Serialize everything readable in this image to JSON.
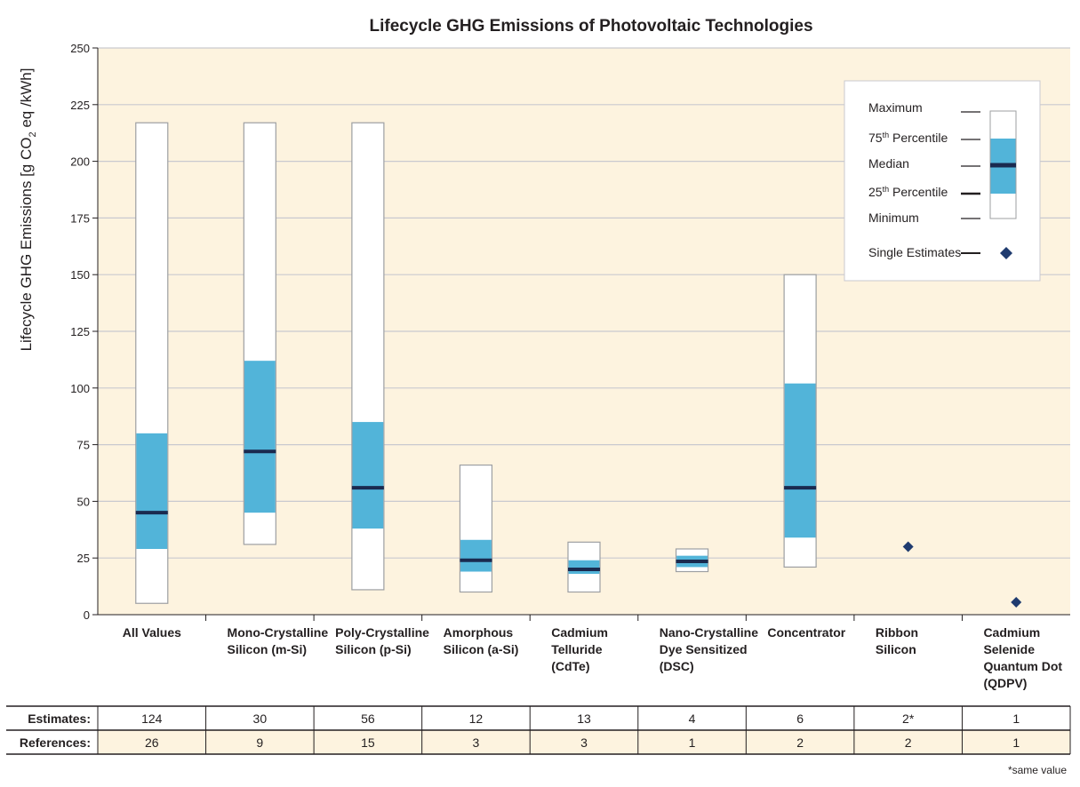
{
  "chart_data": {
    "type": "box",
    "title": "Lifecycle GHG Emissions of Photovoltaic Technologies",
    "ylabel_parts": [
      "Lifecycle GHG Emissions [g CO",
      "2",
      " eq /kWh]"
    ],
    "xlabel": "",
    "ylim": [
      0,
      250
    ],
    "yticks": [
      0,
      25,
      50,
      75,
      100,
      125,
      150,
      175,
      200,
      225,
      250
    ],
    "grid": true,
    "legend_position": "top-right",
    "categories": [
      [
        "All Values"
      ],
      [
        "Mono-Crystalline",
        "Silicon (m-Si)"
      ],
      [
        "Poly-Crystalline",
        "Silicon (p-Si)"
      ],
      [
        "Amorphous",
        "Silicon (a-Si)"
      ],
      [
        "Cadmium",
        "Telluride",
        "(CdTe)"
      ],
      [
        "Nano-Crystalline",
        "Dye Sensitized",
        "(DSC)"
      ],
      [
        "Concentrator"
      ],
      [
        "Ribbon",
        "Silicon"
      ],
      [
        "Cadmium",
        "Selenide",
        "Quantum Dot",
        "(QDPV)"
      ]
    ],
    "boxes": [
      {
        "min": 5,
        "q1": 29,
        "median": 45,
        "q3": 80,
        "max": 217
      },
      {
        "min": 31,
        "q1": 45,
        "median": 72,
        "q3": 112,
        "max": 217
      },
      {
        "min": 11,
        "q1": 38,
        "median": 56,
        "q3": 85,
        "max": 217
      },
      {
        "min": 10,
        "q1": 19,
        "median": 24,
        "q3": 33,
        "max": 66
      },
      {
        "min": 10,
        "q1": 18,
        "median": 20,
        "q3": 24,
        "max": 32
      },
      {
        "min": 19,
        "q1": 21,
        "median": 23.5,
        "q3": 26,
        "max": 29
      },
      {
        "min": 21,
        "q1": 34,
        "median": 56,
        "q3": 102,
        "max": 150
      },
      null,
      null
    ],
    "single_estimates": [
      null,
      null,
      null,
      null,
      null,
      null,
      null,
      30,
      5.5
    ],
    "legend": {
      "maximum": "Maximum",
      "p75_prefix": "75",
      "p75_sup": "th",
      "p75_suffix": "  Percentile",
      "median": "Median",
      "p25_prefix": "25",
      "p25_sup": "th",
      "p25_suffix": " Percentile",
      "minimum": "Minimum",
      "single": "Single Estimates"
    },
    "table": {
      "estimates_label": "Estimates:",
      "estimates": [
        "124",
        "30",
        "56",
        "12",
        "13",
        "4",
        "6",
        "2*",
        "1"
      ],
      "references_label": "References:",
      "references": [
        "26",
        "9",
        "15",
        "3",
        "3",
        "1",
        "2",
        "2",
        "1"
      ]
    },
    "footnote": "*same value",
    "colors": {
      "plot_bg": "#fdf3df",
      "box_fill": "#ffffff",
      "box_stroke": "#9d9fa2",
      "iqr_fill": "#52b4d9",
      "median": "#1a2a4f",
      "marker": "#1f3b6f",
      "grid": "#c9c9cf",
      "table_bg": "#fdf3df"
    }
  }
}
